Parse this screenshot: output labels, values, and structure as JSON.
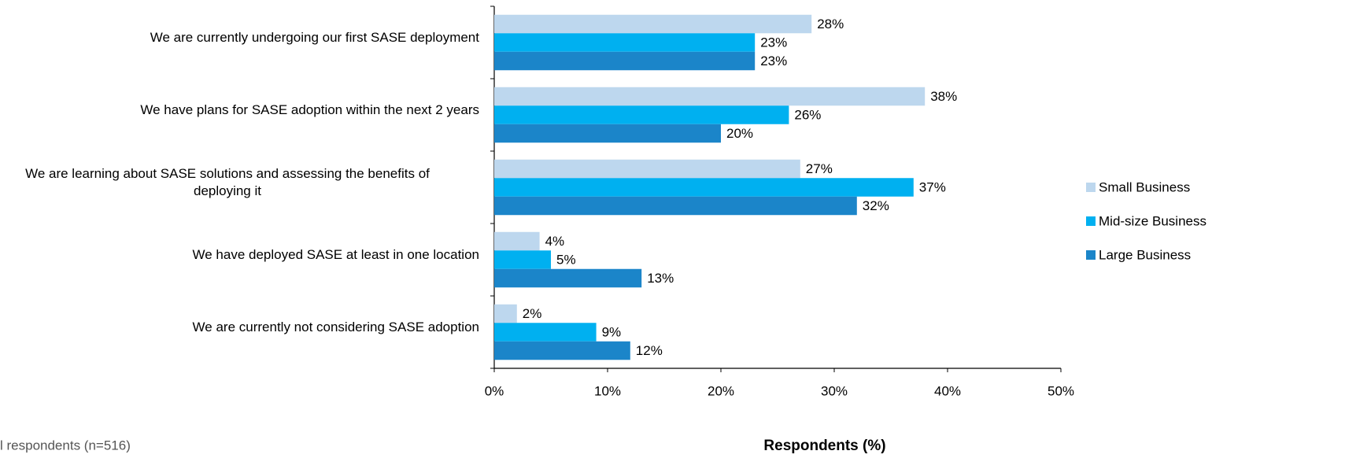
{
  "chart_data": {
    "type": "hbar",
    "categories": [
      "We are currently undergoing our first SASE deployment",
      "We have plans for SASE adoption within the next 2 years",
      "We are learning about SASE solutions and assessing the benefits of\ndeploying it",
      "We have deployed SASE at least in one location",
      "We are currently not considering SASE adoption"
    ],
    "series": [
      {
        "name": "Small Business",
        "color": "#bdd7ee",
        "values": [
          28,
          38,
          27,
          4,
          2
        ],
        "value_labels": [
          "28%",
          "38%",
          "27%",
          "4%",
          "2%"
        ]
      },
      {
        "name": "Mid-size Business",
        "color": "#00b0f0",
        "values": [
          23,
          26,
          37,
          5,
          9
        ],
        "value_labels": [
          "23%",
          "26%",
          "37%",
          "5%",
          "9%"
        ]
      },
      {
        "name": "Large Business",
        "color": "#1b85c9",
        "values": [
          23,
          20,
          32,
          13,
          12
        ],
        "value_labels": [
          "23%",
          "20%",
          "32%",
          "13%",
          "12%"
        ]
      }
    ],
    "xlim": [
      0,
      50
    ],
    "xticks": [
      {
        "value": 0,
        "label": "0%"
      },
      {
        "value": 10,
        "label": "10%"
      },
      {
        "value": 20,
        "label": "20%"
      },
      {
        "value": 30,
        "label": "30%"
      },
      {
        "value": 40,
        "label": "40%"
      },
      {
        "value": 50,
        "label": "50%"
      }
    ],
    "xlabel": "Respondents (%)",
    "note": "l respondents (n=516)",
    "legend": "right"
  }
}
